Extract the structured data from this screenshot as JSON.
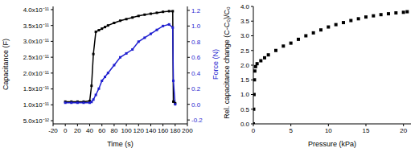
{
  "chart_data": [
    {
      "type": "line",
      "x_label": "Time (s)",
      "y_label": "Capacitance (F)",
      "y2_label": "Force (N)",
      "x": [
        0,
        10,
        20,
        30,
        40,
        43,
        46,
        50,
        55,
        60,
        65,
        70,
        80,
        90,
        100,
        110,
        120,
        130,
        140,
        150,
        160,
        170,
        176,
        177,
        180
      ],
      "series": [
        {
          "color": "#000000",
          "marker": "square",
          "values": [
            1.1e-11,
            1.1e-11,
            1.1e-11,
            1.1e-11,
            1.12e-11,
            1.6e-11,
            2.6e-11,
            3.3e-11,
            3.35e-11,
            3.4e-11,
            3.45e-11,
            3.5e-11,
            3.58e-11,
            3.65e-11,
            3.7e-11,
            3.75e-11,
            3.8e-11,
            3.84e-11,
            3.87e-11,
            3.9e-11,
            3.93e-11,
            3.95e-11,
            3.95e-11,
            1.1e-11,
            1.05e-11
          ]
        },
        {
          "color": "#1f1fd0",
          "marker": "square",
          "axis": "y2",
          "values": [
            0.02,
            0.02,
            0.02,
            0.02,
            0.02,
            0.03,
            0.06,
            0.12,
            0.2,
            0.3,
            0.35,
            0.4,
            0.5,
            0.6,
            0.65,
            0.7,
            0.8,
            0.85,
            0.9,
            0.95,
            1.0,
            1.02,
            0.98,
            0.3,
            0.0
          ]
        }
      ],
      "xlim": [
        -20,
        200
      ],
      "xticks": [
        -20,
        0,
        20,
        40,
        60,
        80,
        100,
        120,
        140,
        160,
        180,
        200
      ],
      "ylim": [
        4e-12,
        4.1e-11
      ],
      "yticks": [
        {
          "value": 5e-12,
          "label": "5.0x10⁻¹²"
        },
        {
          "value": 1e-11,
          "label": "1.0x10⁻¹¹"
        },
        {
          "value": 1.5e-11,
          "label": "1.5x10⁻¹¹"
        },
        {
          "value": 2e-11,
          "label": "2.0x10⁻¹¹"
        },
        {
          "value": 2.5e-11,
          "label": "2.5x10⁻¹¹"
        },
        {
          "value": 3e-11,
          "label": "3.0x10⁻¹¹"
        },
        {
          "value": 3.5e-11,
          "label": "3.5x10⁻¹¹"
        },
        {
          "value": 4e-11,
          "label": "4.0x10⁻¹¹"
        }
      ],
      "y2lim": [
        -0.25,
        1.25
      ],
      "y2ticks": [
        {
          "value": -0.2,
          "label": "-0.2"
        },
        {
          "value": 0,
          "label": "0.0"
        },
        {
          "value": 0.2,
          "label": "0.2"
        },
        {
          "value": 0.4,
          "label": "0.4"
        },
        {
          "value": 0.6,
          "label": "0.6"
        },
        {
          "value": 0.8,
          "label": "0.8"
        },
        {
          "value": 1.0,
          "label": "1.0"
        },
        {
          "value": 1.2,
          "label": "1.2"
        }
      ]
    },
    {
      "type": "scatter",
      "x_label": "Pressure (kPa)",
      "y_label": "Rel. capacitance change (C-C₀)/C₀",
      "color": "#000000",
      "marker": "square",
      "x": [
        0,
        0.05,
        0.1,
        0.15,
        0.2,
        0.3,
        0.5,
        1,
        1.5,
        2,
        3,
        4,
        5,
        6,
        7,
        8,
        9,
        10,
        11,
        12,
        13,
        14,
        15,
        16,
        17,
        18,
        19,
        20,
        20.5
      ],
      "values": [
        0,
        0.5,
        1.0,
        1.5,
        1.8,
        1.95,
        2.05,
        2.15,
        2.25,
        2.35,
        2.5,
        2.65,
        2.75,
        2.88,
        3.0,
        3.1,
        3.2,
        3.3,
        3.38,
        3.45,
        3.52,
        3.58,
        3.64,
        3.68,
        3.72,
        3.75,
        3.78,
        3.8,
        3.82
      ],
      "xlim": [
        0,
        21
      ],
      "xticks": [
        0,
        5,
        10,
        15,
        20
      ],
      "ylim": [
        0,
        4.0
      ],
      "yticks": [
        {
          "value": 0,
          "label": "0.0"
        },
        {
          "value": 0.5,
          "label": "0.5"
        },
        {
          "value": 1.0,
          "label": "1.0"
        },
        {
          "value": 1.5,
          "label": "1.5"
        },
        {
          "value": 2.0,
          "label": "2.0"
        },
        {
          "value": 2.5,
          "label": "2.5"
        },
        {
          "value": 3.0,
          "label": "3.0"
        },
        {
          "value": 3.5,
          "label": "3.5"
        },
        {
          "value": 4.0,
          "label": "4.0"
        }
      ]
    }
  ]
}
